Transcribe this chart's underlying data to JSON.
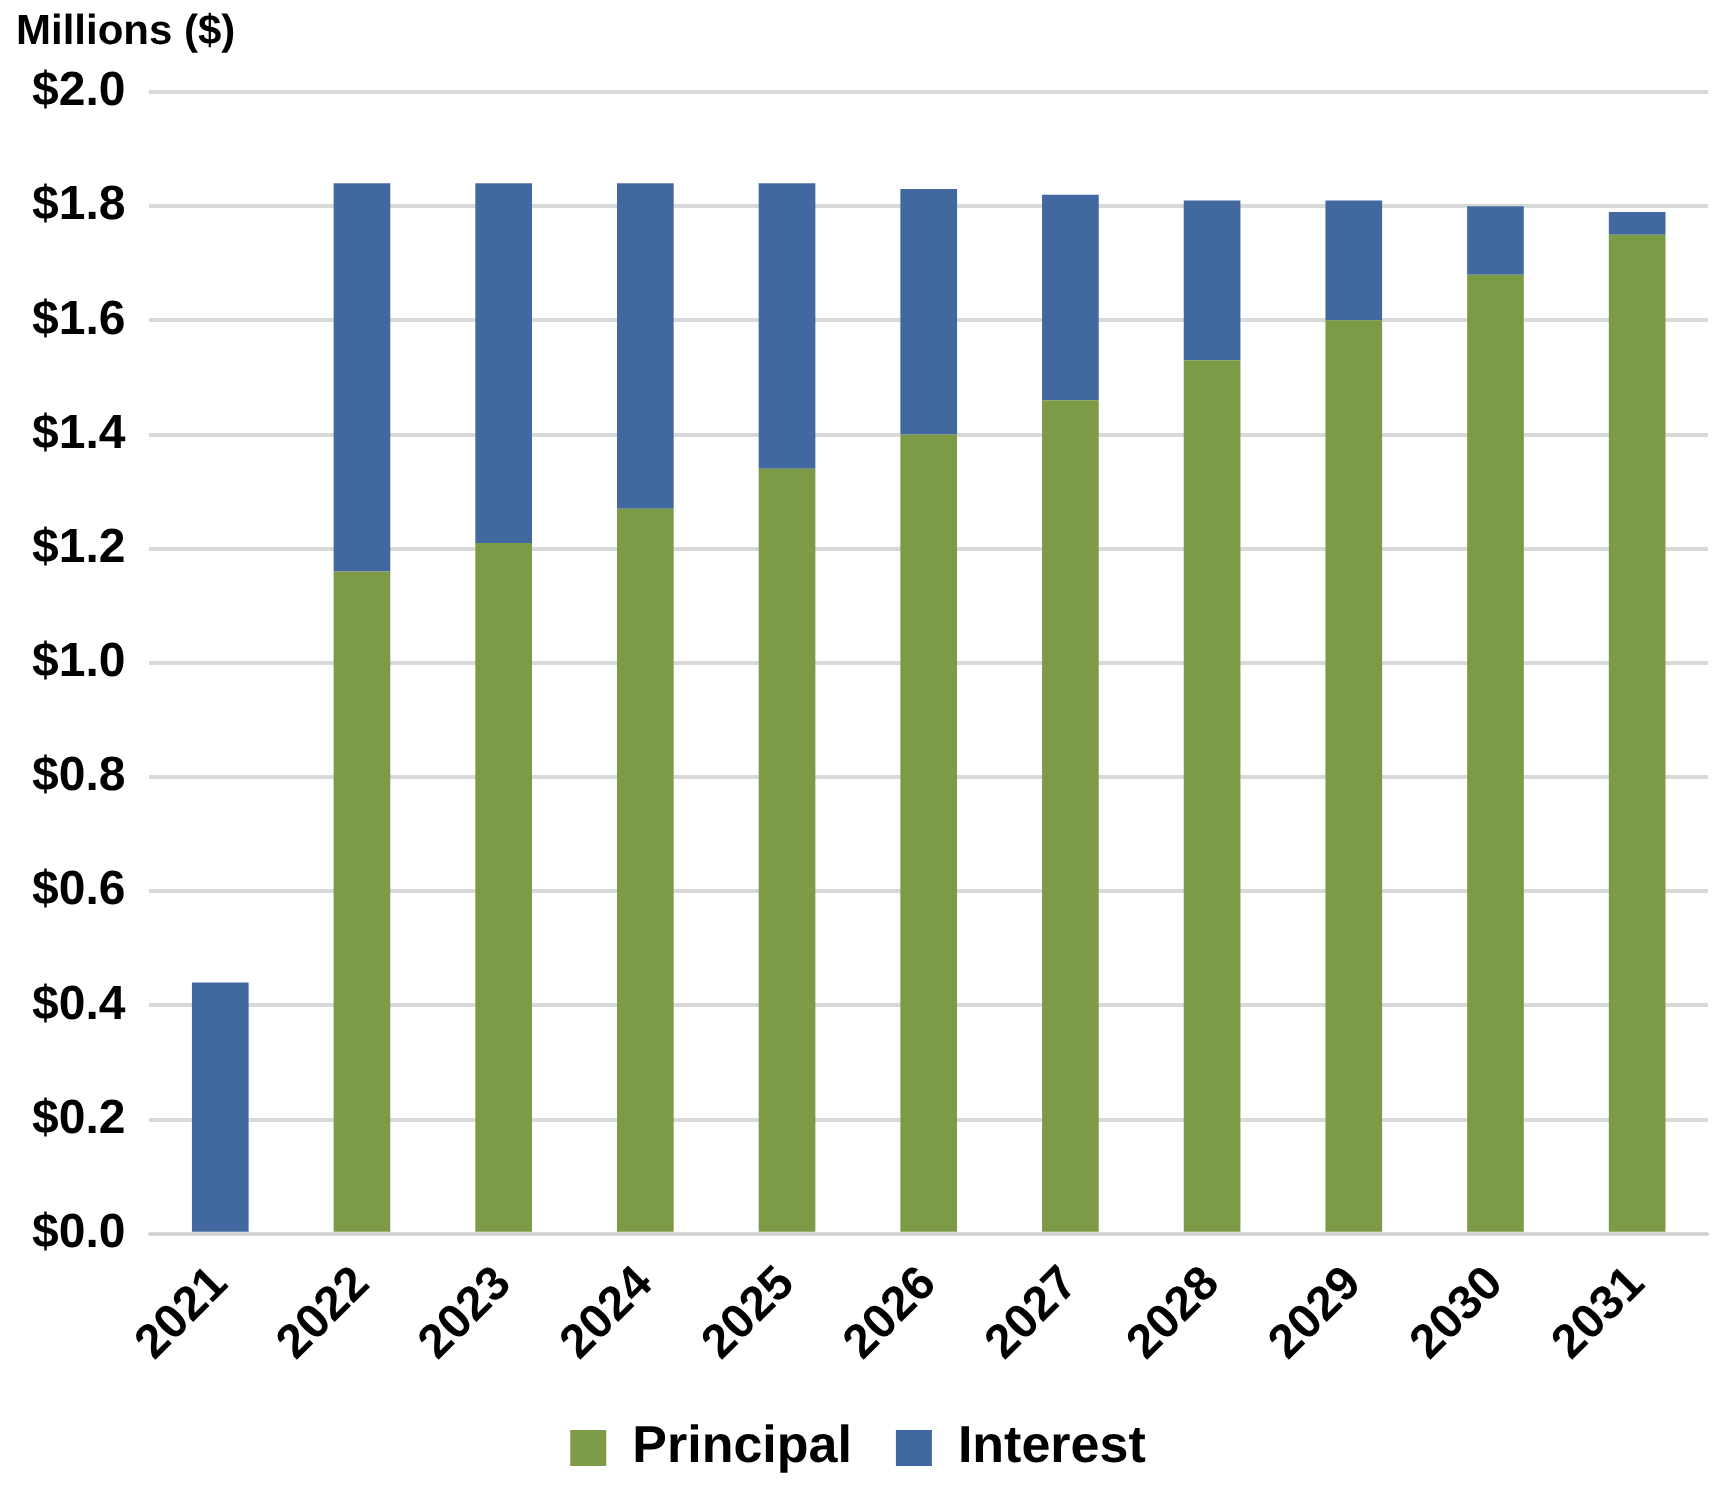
{
  "chart_data": {
    "type": "bar",
    "ylabel": "Millions ($)",
    "stacked": true,
    "categories": [
      "2021",
      "2022",
      "2023",
      "2024",
      "2025",
      "2026",
      "2027",
      "2028",
      "2029",
      "2030",
      "2031"
    ],
    "series": [
      {
        "name": "Principal",
        "color": "#7d9a46",
        "values": [
          0,
          1.16,
          1.21,
          1.27,
          1.34,
          1.4,
          1.46,
          1.53,
          1.6,
          1.68,
          1.75
        ]
      },
      {
        "name": "Interest",
        "color": "#41699f",
        "values": [
          0.44,
          0.68,
          0.63,
          0.57,
          0.5,
          0.43,
          0.36,
          0.28,
          0.21,
          0.12,
          0.04
        ]
      }
    ],
    "ylim": [
      0,
      2.0
    ],
    "yticks": [
      {
        "value": 0,
        "label": "$0.0"
      },
      {
        "value": 0.2,
        "label": "$0.2"
      },
      {
        "value": 0.4,
        "label": "$0.4"
      },
      {
        "value": 0.6,
        "label": "$0.6"
      },
      {
        "value": 0.8,
        "label": "$0.8"
      },
      {
        "value": 1.0,
        "label": "$1.0"
      },
      {
        "value": 1.2,
        "label": "$1.2"
      },
      {
        "value": 1.4,
        "label": "$1.4"
      },
      {
        "value": 1.6,
        "label": "$1.6"
      },
      {
        "value": 1.8,
        "label": "$1.8"
      },
      {
        "value": 2.0,
        "label": "$2.0"
      }
    ],
    "grid": "y",
    "legend": "bottom"
  }
}
